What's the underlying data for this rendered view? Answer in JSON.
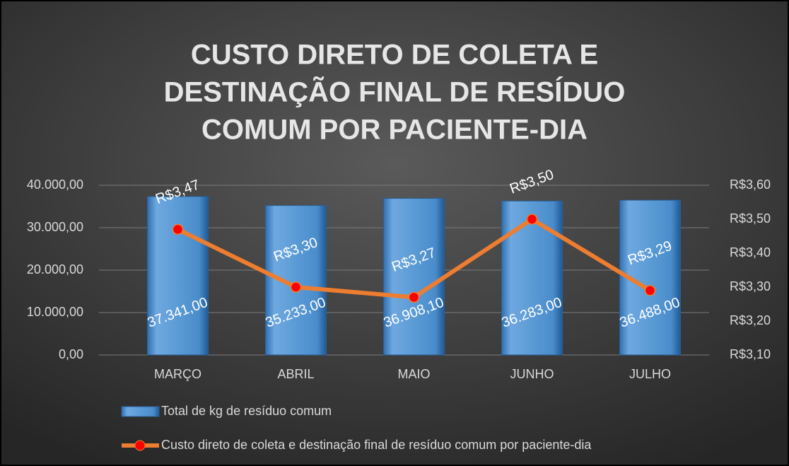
{
  "chart_data": {
    "type": "bar_line",
    "title": [
      "CUSTO DIRETO DE COLETA E",
      "DESTINAÇÃO FINAL DE RESÍDUO",
      "COMUM POR PACIENTE-DIA"
    ],
    "categories": [
      "MARÇO",
      "ABRIL",
      "MAIO",
      "JUNHO",
      "JULHO"
    ],
    "series": [
      {
        "name": "Total de kg de resíduo comum",
        "color": "#5b9bd5",
        "type": "bar",
        "values": [
          37341,
          35233,
          36908.1,
          36283,
          36488
        ],
        "value_labels": [
          "37.341,00",
          "35.233,00",
          "36.908,10",
          "36.283,00",
          "36.488,00"
        ]
      },
      {
        "name": "Custo direto de coleta e destinação final de resíduo comum por paciente-dia",
        "color": "#ed7d31",
        "marker_color": "#ff0000",
        "type": "line",
        "axis": "y2",
        "values": [
          3.47,
          3.3,
          3.27,
          3.5,
          3.29
        ],
        "value_labels": [
          "R$3,47",
          "R$3,30",
          "R$3,27",
          "R$3,50",
          "R$3,29"
        ]
      }
    ],
    "ylim": [
      0,
      40000
    ],
    "yticks": [
      {
        "value": 0,
        "label": "0,00"
      },
      {
        "value": 10000,
        "label": "10.000,00"
      },
      {
        "value": 20000,
        "label": "20.000,00"
      },
      {
        "value": 30000,
        "label": "30.000,00"
      },
      {
        "value": 40000,
        "label": "40.000,00"
      }
    ],
    "y2lim": [
      3.1,
      3.6
    ],
    "y2ticks": [
      {
        "value": 3.1,
        "label": "R$3,10"
      },
      {
        "value": 3.2,
        "label": "R$3,20"
      },
      {
        "value": 3.3,
        "label": "R$3,30"
      },
      {
        "value": 3.4,
        "label": "R$3,40"
      },
      {
        "value": 3.5,
        "label": "R$3,50"
      },
      {
        "value": 3.6,
        "label": "R$3,60"
      }
    ],
    "grid": true,
    "legend": "bottom"
  }
}
